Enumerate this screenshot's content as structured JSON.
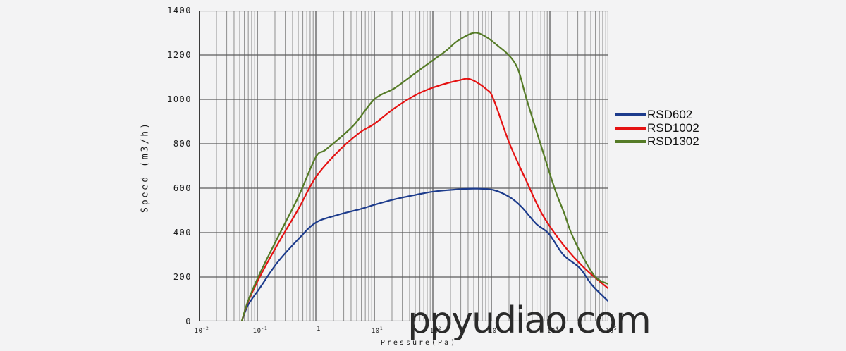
{
  "watermark": {
    "text": "ppyudiao.com"
  },
  "colors": {
    "background": "#f3f3f4",
    "grid_minor": "#8f8f8f",
    "grid_major": "#5c5c5c",
    "border": "#3a3a3a",
    "text": "#1a1a1a",
    "watermark": "#1c1c1c"
  },
  "chart_data": {
    "type": "line",
    "title": "",
    "xlabel": "Pressure(Pa)",
    "ylabel": "Speed (m3/h)",
    "x_scale": "log",
    "x_range": [
      0.01,
      100000
    ],
    "y_range": [
      0,
      1400
    ],
    "y_tick_step": 200,
    "grid": "vertical log decades with minors 2-9, horizontal every 200",
    "legend_position": "right-outside",
    "y_tick_labels": [
      "0",
      "200",
      "400",
      "600",
      "800",
      "1000",
      "1200",
      "1400"
    ],
    "x_tick_labels": [
      {
        "base": "10",
        "sup": "-2"
      },
      {
        "base": "10",
        "sup": "-1"
      },
      {
        "base": "1",
        "sup": ""
      },
      {
        "base": "10",
        "sup": "1"
      },
      {
        "base": "10",
        "sup": "2"
      },
      {
        "base": "10",
        "sup": "3"
      },
      {
        "base": "10",
        "sup": "4"
      },
      {
        "base": "10",
        "sup": "5"
      }
    ],
    "series": [
      {
        "name": "RSD602",
        "color": "#1c3b8c",
        "points": [
          [
            0.054,
            0
          ],
          [
            0.07,
            75
          ],
          [
            0.11,
            150
          ],
          [
            0.22,
            265
          ],
          [
            0.5,
            370
          ],
          [
            1,
            445
          ],
          [
            2.4,
            480
          ],
          [
            5.6,
            505
          ],
          [
            10,
            525
          ],
          [
            22,
            550
          ],
          [
            51,
            570
          ],
          [
            105,
            585
          ],
          [
            270,
            595
          ],
          [
            515,
            598
          ],
          [
            1080,
            592
          ],
          [
            2050,
            560
          ],
          [
            3300,
            515
          ],
          [
            5800,
            440
          ],
          [
            9600,
            395
          ],
          [
            17000,
            300
          ],
          [
            32500,
            240
          ],
          [
            52000,
            165
          ],
          [
            100000,
            90
          ]
        ]
      },
      {
        "name": "RSD1002",
        "color": "#e51212",
        "points": [
          [
            0.054,
            0
          ],
          [
            0.07,
            90
          ],
          [
            0.11,
            200
          ],
          [
            0.22,
            345
          ],
          [
            0.5,
            505
          ],
          [
            1,
            650
          ],
          [
            2.4,
            765
          ],
          [
            5.6,
            850
          ],
          [
            10,
            890
          ],
          [
            22,
            960
          ],
          [
            51,
            1020
          ],
          [
            105,
            1055
          ],
          [
            270,
            1085
          ],
          [
            440,
            1090
          ],
          [
            830,
            1045
          ],
          [
            1090,
            1000
          ],
          [
            2050,
            800
          ],
          [
            4000,
            630
          ],
          [
            7500,
            480
          ],
          [
            17000,
            345
          ],
          [
            39000,
            240
          ],
          [
            100000,
            148
          ]
        ]
      },
      {
        "name": "RSD1302",
        "color": "#557b27",
        "points": [
          [
            0.054,
            0
          ],
          [
            0.07,
            95
          ],
          [
            0.11,
            215
          ],
          [
            0.22,
            375
          ],
          [
            0.5,
            560
          ],
          [
            1,
            740
          ],
          [
            1.5,
            775
          ],
          [
            4.3,
            880
          ],
          [
            10,
            1000
          ],
          [
            22,
            1050
          ],
          [
            51,
            1120
          ],
          [
            105,
            1180
          ],
          [
            170,
            1220
          ],
          [
            270,
            1265
          ],
          [
            510,
            1300
          ],
          [
            830,
            1280
          ],
          [
            1240,
            1245
          ],
          [
            2050,
            1195
          ],
          [
            2900,
            1130
          ],
          [
            4000,
            1000
          ],
          [
            6900,
            800
          ],
          [
            12000,
            600
          ],
          [
            17400,
            490
          ],
          [
            23000,
            400
          ],
          [
            35000,
            300
          ],
          [
            60000,
            200
          ],
          [
            100000,
            168
          ]
        ]
      }
    ]
  }
}
